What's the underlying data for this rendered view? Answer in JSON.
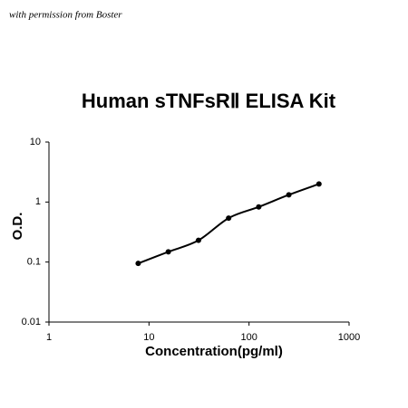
{
  "note": "with permission from Boster",
  "chart_data": {
    "type": "scatter",
    "title": "Human sTNFsRⅡ ELISA Kit",
    "x_label": "Concentration(pg/ml)",
    "y_label": "O.D.",
    "xscale": "log",
    "yscale": "log",
    "xlim": [
      1,
      1000
    ],
    "xticks": [
      1,
      10,
      100,
      1000
    ],
    "ylim": [
      0.01,
      10
    ],
    "yticks": [
      0.01,
      0.1,
      1,
      10
    ],
    "fit_curve": true,
    "series": [
      {
        "color": "#000000",
        "x": [
          7.8,
          15.6,
          31.25,
          62.5,
          125,
          250,
          500
        ],
        "values": [
          0.095,
          0.148,
          0.23,
          0.54,
          0.83,
          1.32,
          2.0
        ]
      }
    ]
  }
}
